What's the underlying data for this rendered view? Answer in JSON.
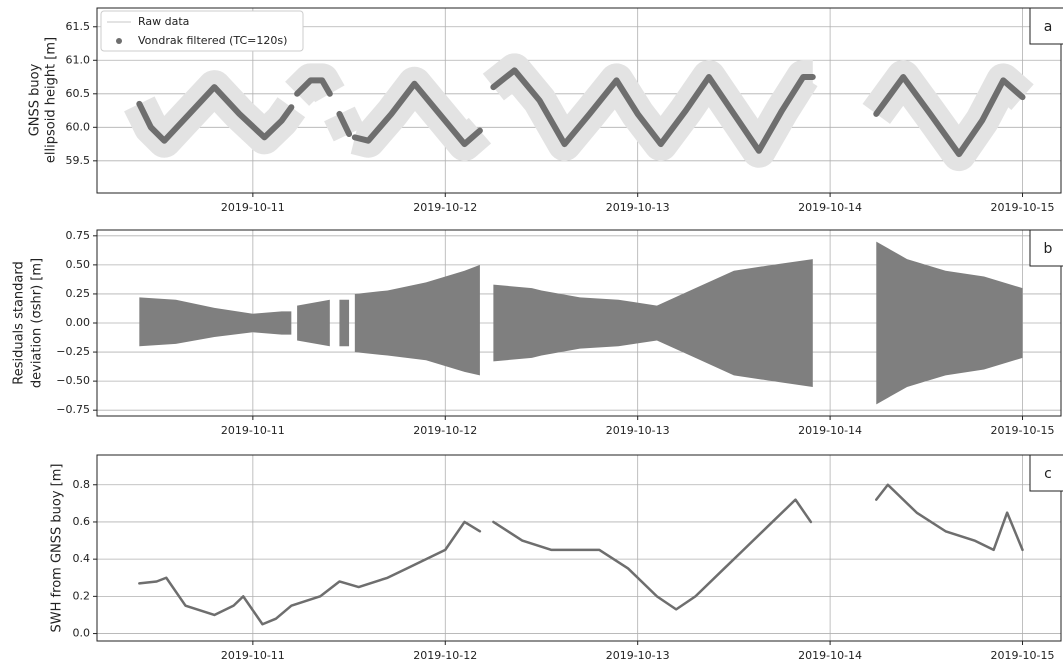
{
  "chart_data": [
    {
      "type": "line",
      "panel_label": "a",
      "ylabel": [
        "GNSS buoy",
        "ellipsoid height [m]"
      ],
      "xlim": [
        10.19,
        15.2
      ],
      "ylim": [
        59.02,
        61.78
      ],
      "xticks": [
        {
          "value": 11,
          "label": "2019-10-11"
        },
        {
          "value": 12,
          "label": "2019-10-12"
        },
        {
          "value": 13,
          "label": "2019-10-13"
        },
        {
          "value": 14,
          "label": "2019-10-14"
        },
        {
          "value": 15,
          "label": "2019-10-15"
        }
      ],
      "yticks": [
        59.5,
        {
          "value": 60,
          "label": "60.0"
        },
        60.5,
        {
          "value": 61,
          "label": "61.0"
        },
        61.5
      ],
      "grid": true,
      "legend": "upper left",
      "series": [
        {
          "name": "Raw data",
          "color": "#e3e3e3",
          "x": [
            10.41,
            10.47,
            10.54,
            10.67,
            10.8,
            10.93,
            11.06,
            11.15,
            11.2,
            null,
            11.23,
            11.3,
            11.36,
            11.4,
            null,
            11.45,
            11.5,
            null,
            11.53,
            11.6,
            11.72,
            11.84,
            11.97,
            12.1,
            12.18,
            null,
            12.25,
            12.36,
            12.49,
            12.62,
            12.75,
            12.89,
            13.0,
            13.12,
            13.25,
            13.37,
            13.5,
            13.63,
            13.75,
            13.86,
            13.91,
            null,
            14.24,
            14.38,
            14.52,
            14.67,
            14.79,
            14.9,
            15.0
          ],
          "values": [
            60.35,
            60.0,
            59.8,
            60.2,
            60.6,
            60.2,
            59.85,
            60.1,
            60.3,
            null,
            60.5,
            60.7,
            60.7,
            60.5,
            null,
            60.2,
            59.9,
            null,
            59.85,
            59.8,
            60.2,
            60.65,
            60.2,
            59.75,
            59.95,
            null,
            60.6,
            60.85,
            60.4,
            59.75,
            60.2,
            60.7,
            60.2,
            59.75,
            60.25,
            60.75,
            60.2,
            59.65,
            60.25,
            60.75,
            60.75,
            null,
            60.2,
            60.75,
            60.2,
            59.6,
            60.1,
            60.7,
            60.45
          ]
        },
        {
          "name": "Vondrak filtered (TC=120s)",
          "color": "#6e6e6e",
          "marker": "o",
          "x": [
            10.41,
            10.47,
            10.54,
            10.67,
            10.8,
            10.93,
            11.06,
            11.15,
            11.2,
            null,
            11.23,
            11.3,
            11.36,
            11.4,
            null,
            11.45,
            11.5,
            null,
            11.53,
            11.6,
            11.72,
            11.84,
            11.97,
            12.1,
            12.18,
            null,
            12.25,
            12.36,
            12.49,
            12.62,
            12.75,
            12.89,
            13.0,
            13.12,
            13.25,
            13.37,
            13.5,
            13.63,
            13.75,
            13.86,
            13.91,
            null,
            14.24,
            14.38,
            14.52,
            14.67,
            14.79,
            14.9,
            15.0
          ],
          "values": [
            60.35,
            60.0,
            59.8,
            60.2,
            60.6,
            60.2,
            59.85,
            60.1,
            60.3,
            null,
            60.5,
            60.7,
            60.7,
            60.5,
            null,
            60.2,
            59.9,
            null,
            59.85,
            59.8,
            60.2,
            60.65,
            60.2,
            59.75,
            59.95,
            null,
            60.6,
            60.85,
            60.4,
            59.75,
            60.2,
            60.7,
            60.2,
            59.75,
            60.25,
            60.75,
            60.2,
            59.65,
            60.25,
            60.75,
            60.75,
            null,
            60.2,
            60.75,
            60.2,
            59.6,
            60.1,
            60.7,
            60.45
          ]
        }
      ]
    },
    {
      "type": "range",
      "panel_label": "b",
      "ylabel": [
        "Residuals standard",
        "deviation (σshr) [m]"
      ],
      "xlim": [
        10.19,
        15.2
      ],
      "ylim": [
        -0.8,
        0.8
      ],
      "xticks": [
        {
          "value": 11,
          "label": "2019-10-11"
        },
        {
          "value": 12,
          "label": "2019-10-12"
        },
        {
          "value": 13,
          "label": "2019-10-13"
        },
        {
          "value": 14,
          "label": "2019-10-14"
        },
        {
          "value": 15,
          "label": "2019-10-15"
        }
      ],
      "yticks": [
        {
          "value": -0.75,
          "label": "−0.75"
        },
        {
          "value": -0.5,
          "label": "−0.50"
        },
        {
          "value": -0.25,
          "label": "−0.25"
        },
        {
          "value": 0,
          "label": "0.00"
        },
        0.25,
        {
          "value": 0.5,
          "label": "0.50"
        },
        0.75
      ],
      "grid": true,
      "series": [
        {
          "color": "#7f7f7f",
          "x": [
            10.41,
            10.6,
            10.8,
            11.0,
            11.15,
            11.2,
            null,
            11.23,
            11.4,
            null,
            11.45,
            11.5,
            null,
            11.53,
            11.7,
            11.9,
            12.1,
            12.18,
            null,
            12.25,
            12.45,
            12.5,
            12.7,
            12.9,
            13.1,
            13.3,
            13.5,
            13.7,
            13.91,
            null,
            14.24,
            14.4,
            14.6,
            14.8,
            15.0
          ],
          "high": [
            0.22,
            0.2,
            0.13,
            0.08,
            0.1,
            0.1,
            null,
            0.15,
            0.2,
            null,
            0.2,
            0.2,
            null,
            0.25,
            0.28,
            0.35,
            0.45,
            0.5,
            null,
            0.33,
            0.3,
            0.28,
            0.22,
            0.2,
            0.15,
            0.3,
            0.45,
            0.5,
            0.55,
            null,
            0.7,
            0.55,
            0.45,
            0.4,
            0.3
          ],
          "low": [
            -0.2,
            -0.18,
            -0.12,
            -0.08,
            -0.1,
            -0.1,
            null,
            -0.15,
            -0.2,
            null,
            -0.2,
            -0.2,
            null,
            -0.25,
            -0.28,
            -0.32,
            -0.42,
            -0.45,
            null,
            -0.33,
            -0.3,
            -0.28,
            -0.22,
            -0.2,
            -0.15,
            -0.3,
            -0.45,
            -0.5,
            -0.55,
            null,
            -0.7,
            -0.55,
            -0.45,
            -0.4,
            -0.3
          ]
        }
      ]
    },
    {
      "type": "line",
      "panel_label": "c",
      "ylabel": [
        "SWH from GNSS buoy [m]"
      ],
      "xlim": [
        10.19,
        15.2
      ],
      "ylim": [
        -0.04,
        0.96
      ],
      "xticks": [
        {
          "value": 11,
          "label": "2019-10-11"
        },
        {
          "value": 12,
          "label": "2019-10-12"
        },
        {
          "value": 13,
          "label": "2019-10-13"
        },
        {
          "value": 14,
          "label": "2019-10-14"
        },
        {
          "value": 15,
          "label": "2019-10-15"
        }
      ],
      "yticks": [
        {
          "value": 0,
          "label": "0.0"
        },
        0.2,
        0.4,
        0.6,
        0.8
      ],
      "grid": true,
      "series": [
        {
          "color": "#6e6e6e",
          "x": [
            10.41,
            10.5,
            10.55,
            10.65,
            10.8,
            10.9,
            10.95,
            11.05,
            11.12,
            11.2,
            11.35,
            11.45,
            11.55,
            11.7,
            11.8,
            12.0,
            12.1,
            12.18,
            null,
            12.25,
            12.4,
            12.55,
            12.7,
            12.8,
            12.95,
            13.1,
            13.2,
            13.3,
            13.45,
            13.55,
            13.7,
            13.82,
            13.9,
            null,
            14.24,
            14.3,
            14.45,
            14.6,
            14.75,
            14.85,
            14.92,
            15.0
          ],
          "values": [
            0.27,
            0.28,
            0.3,
            0.15,
            0.1,
            0.15,
            0.2,
            0.05,
            0.08,
            0.15,
            0.2,
            0.28,
            0.25,
            0.3,
            0.35,
            0.45,
            0.6,
            0.55,
            null,
            0.6,
            0.5,
            0.45,
            0.45,
            0.45,
            0.35,
            0.2,
            0.13,
            0.2,
            0.35,
            0.45,
            0.6,
            0.72,
            0.6,
            null,
            0.72,
            0.8,
            0.65,
            0.55,
            0.5,
            0.45,
            0.65,
            0.45
          ]
        }
      ]
    }
  ]
}
